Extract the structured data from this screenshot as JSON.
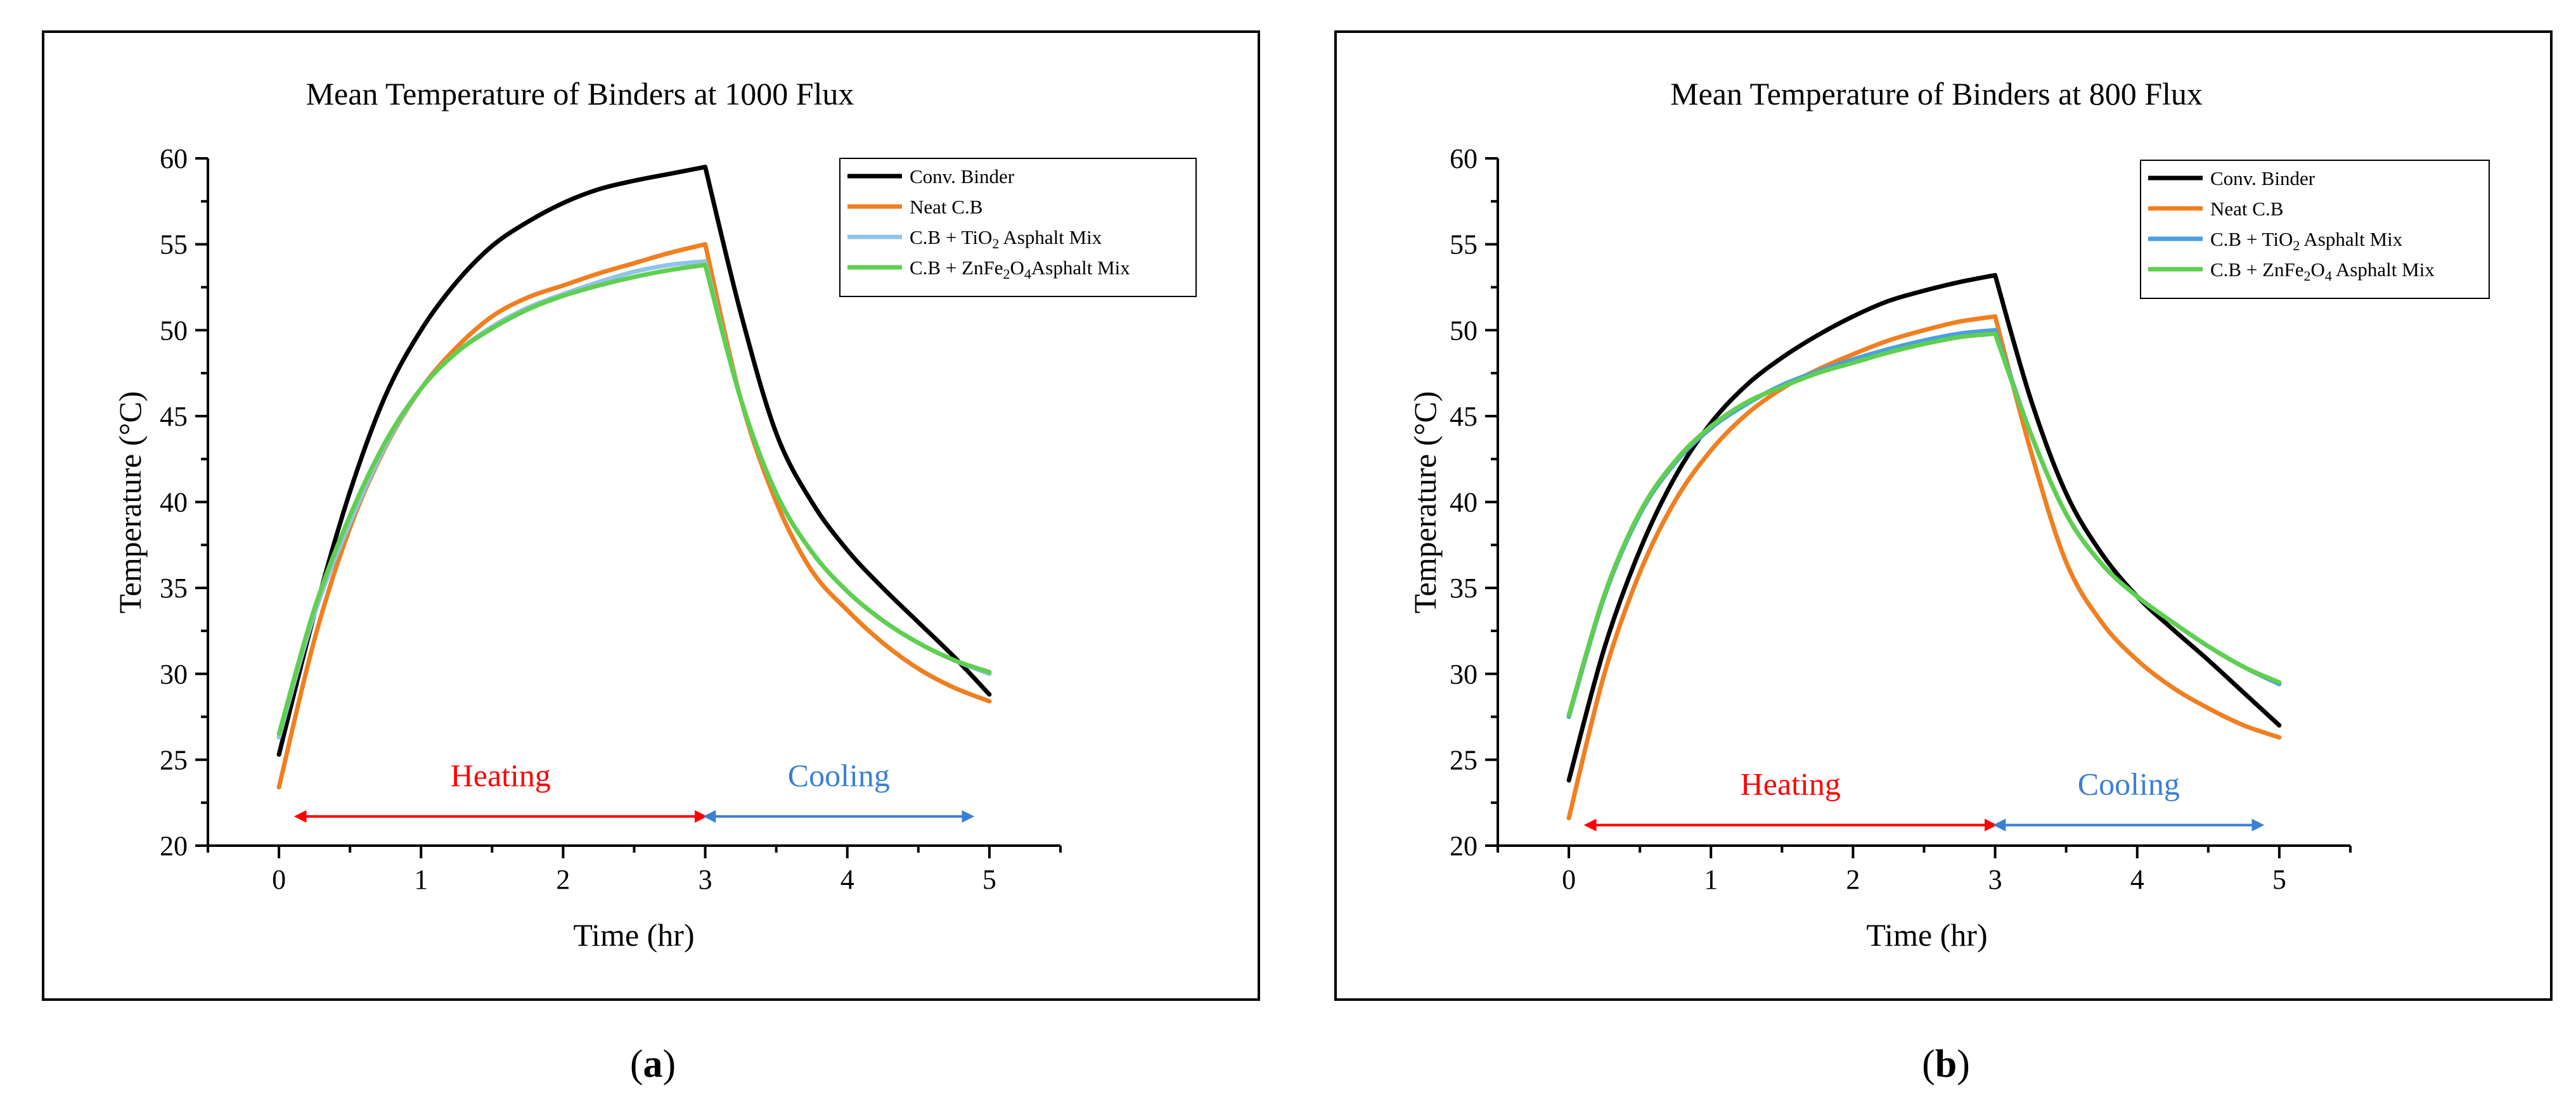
{
  "chart_data": [
    {
      "type": "line",
      "panel_label": "a",
      "title": "Mean Temperature of Binders at 1000 Flux",
      "xlabel": "Time (hr)",
      "ylabel": "Temperature (°C)",
      "xlim": [
        -0.5,
        5.5
      ],
      "ylim": [
        20,
        60
      ],
      "xticks": [
        0,
        1,
        2,
        3,
        4,
        5
      ],
      "yticks": [
        20,
        25,
        30,
        35,
        40,
        45,
        50,
        55,
        60
      ],
      "series": [
        {
          "name": "Conv. Binder",
          "color": "#000000",
          "x": [
            0,
            0.25,
            0.5,
            0.75,
            1,
            1.25,
            1.5,
            1.75,
            2,
            2.25,
            2.5,
            2.75,
            3,
            3.25,
            3.5,
            3.75,
            4,
            4.25,
            4.5,
            4.75,
            5
          ],
          "y": [
            25.3,
            33.5,
            40.6,
            46.2,
            50.0,
            52.8,
            54.9,
            56.3,
            57.4,
            58.2,
            58.7,
            59.1,
            59.5,
            51.0,
            44.0,
            40.0,
            37.2,
            35.0,
            33.0,
            31.0,
            28.8
          ]
        },
        {
          "name": "Neat C.B",
          "color": "#f07f20",
          "x": [
            0,
            0.25,
            0.5,
            0.75,
            1,
            1.25,
            1.5,
            1.75,
            2,
            2.25,
            2.5,
            2.75,
            3,
            3.25,
            3.5,
            3.75,
            4,
            4.25,
            4.5,
            4.75,
            5
          ],
          "y": [
            23.4,
            32.0,
            38.5,
            43.2,
            46.6,
            49.0,
            50.8,
            51.9,
            52.6,
            53.3,
            53.9,
            54.5,
            55.0,
            46.0,
            40.0,
            36.0,
            33.7,
            31.8,
            30.3,
            29.2,
            28.4
          ]
        },
        {
          "name": "C.B + TiO₂ Asphalt Mix",
          "color": "#8fc4e8",
          "x": [
            0,
            0.25,
            0.5,
            0.75,
            1,
            1.25,
            1.5,
            1.75,
            2,
            2.25,
            2.5,
            2.75,
            3,
            3.25,
            3.5,
            3.75,
            4,
            4.25,
            4.5,
            4.75,
            5
          ],
          "y": [
            26.3,
            33.5,
            38.8,
            43.3,
            46.6,
            48.7,
            50.2,
            51.3,
            52.1,
            52.8,
            53.4,
            53.8,
            54.0,
            46.0,
            40.5,
            37.1,
            34.8,
            33.1,
            31.8,
            30.8,
            30.0
          ]
        },
        {
          "name": "C.B + ZnFe₂O₄Asphalt Mix",
          "color": "#5fcf4f",
          "x": [
            0,
            0.25,
            0.5,
            0.75,
            1,
            1.25,
            1.5,
            1.75,
            2,
            2.25,
            2.5,
            2.75,
            3,
            3.25,
            3.5,
            3.75,
            4,
            4.25,
            4.5,
            4.75,
            5
          ],
          "y": [
            26.5,
            33.8,
            39.2,
            43.5,
            46.6,
            48.7,
            50.1,
            51.2,
            52.0,
            52.6,
            53.1,
            53.5,
            53.8,
            46.0,
            40.5,
            37.1,
            34.8,
            33.1,
            31.8,
            30.8,
            30.1
          ]
        }
      ],
      "annotations": [
        {
          "text": "Heating",
          "color": "#ff0000",
          "from_x": 0.15,
          "to_x": 2.97,
          "y": 21.7
        },
        {
          "text": "Cooling",
          "color": "#3b7fd4",
          "from_x": 3.03,
          "to_x": 4.85,
          "y": 21.7
        }
      ],
      "legend_position": "top-right"
    },
    {
      "type": "line",
      "panel_label": "b",
      "title": "Mean Temperature of Binders at 800 Flux",
      "xlabel": "Time (hr)",
      "ylabel": "Temperature (°C)",
      "xlim": [
        -0.5,
        5.5
      ],
      "ylim": [
        20,
        60
      ],
      "xticks": [
        0,
        1,
        2,
        3,
        4,
        5
      ],
      "yticks": [
        20,
        25,
        30,
        35,
        40,
        45,
        50,
        55,
        60
      ],
      "series": [
        {
          "name": "Conv. Binder",
          "color": "#000000",
          "x": [
            0,
            0.25,
            0.5,
            0.75,
            1,
            1.25,
            1.5,
            1.75,
            2,
            2.25,
            2.5,
            2.75,
            3,
            3.25,
            3.5,
            3.75,
            4,
            4.25,
            4.5,
            4.75,
            5
          ],
          "y": [
            23.8,
            31.5,
            37.2,
            41.5,
            44.6,
            46.8,
            48.4,
            49.7,
            50.8,
            51.7,
            52.3,
            52.8,
            53.2,
            46.0,
            40.5,
            37.0,
            34.5,
            32.6,
            30.8,
            28.9,
            27.0
          ]
        },
        {
          "name": "Neat C.B",
          "color": "#f07f20",
          "x": [
            0,
            0.25,
            0.5,
            0.75,
            1,
            1.25,
            1.5,
            1.75,
            2,
            2.25,
            2.5,
            2.75,
            3,
            3.25,
            3.5,
            3.75,
            4,
            4.25,
            4.5,
            4.75,
            5
          ],
          "y": [
            21.6,
            30.0,
            35.9,
            40.1,
            43.0,
            45.1,
            46.6,
            47.7,
            48.6,
            49.4,
            50.0,
            50.5,
            50.8,
            43.0,
            36.5,
            33.0,
            30.8,
            29.2,
            28.0,
            27.0,
            26.3
          ]
        },
        {
          "name": "C.B + TiO₂ Asphalt Mix",
          "color": "#4a9fe0",
          "x": [
            0,
            0.25,
            0.5,
            0.75,
            1,
            1.25,
            1.5,
            1.75,
            2,
            2.25,
            2.5,
            2.75,
            3,
            3.25,
            3.5,
            3.75,
            4,
            4.25,
            4.5,
            4.75,
            5
          ],
          "y": [
            27.5,
            34.5,
            39.3,
            42.3,
            44.3,
            45.7,
            46.8,
            47.6,
            48.3,
            48.9,
            49.4,
            49.8,
            50.0,
            44.0,
            39.3,
            36.4,
            34.5,
            33.0,
            31.6,
            30.4,
            29.4
          ]
        },
        {
          "name": "C.B + ZnFe₂O₄ Asphalt Mix",
          "color": "#5fcf4f",
          "x": [
            0,
            0.25,
            0.5,
            0.75,
            1,
            1.25,
            1.5,
            1.75,
            2,
            2.25,
            2.5,
            2.75,
            3,
            3.25,
            3.5,
            3.75,
            4,
            4.25,
            4.5,
            4.75,
            5
          ],
          "y": [
            27.6,
            34.6,
            39.4,
            42.4,
            44.4,
            45.8,
            46.7,
            47.5,
            48.1,
            48.7,
            49.2,
            49.6,
            49.8,
            44.0,
            39.3,
            36.4,
            34.5,
            33.0,
            31.6,
            30.4,
            29.5
          ]
        }
      ],
      "annotations": [
        {
          "text": "Heating",
          "color": "#ff0000",
          "from_x": 0.15,
          "to_x": 2.97,
          "y": 21.2
        },
        {
          "text": "Cooling",
          "color": "#3b7fd4",
          "from_x": 3.03,
          "to_x": 4.85,
          "y": 21.2
        }
      ],
      "legend_position": "top-right"
    }
  ],
  "panel_labels": {
    "a": {
      "open": "(",
      "letter": "a",
      "close": ")"
    },
    "b": {
      "open": "(",
      "letter": "b",
      "close": ")"
    }
  }
}
